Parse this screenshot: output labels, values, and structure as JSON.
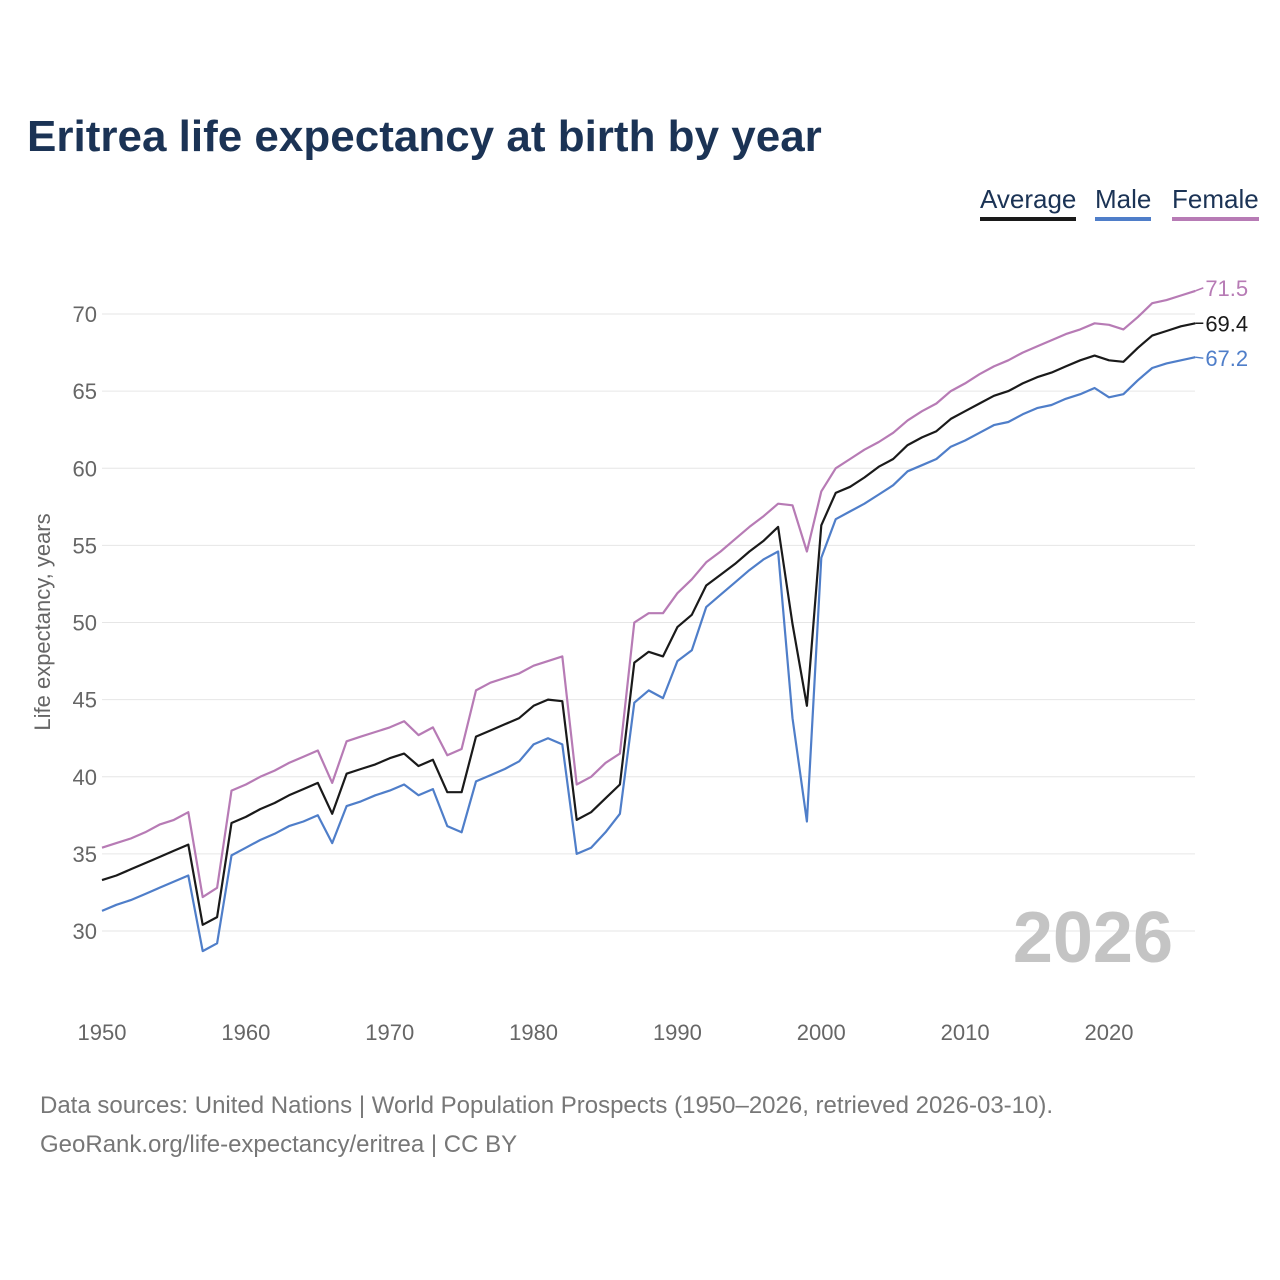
{
  "chart_data": {
    "type": "line",
    "title": "Eritrea life expectancy at birth by year",
    "xlabel": "",
    "ylabel": "Life expectancy, years",
    "x_start": 1950,
    "x_end": 2026,
    "xlim": [
      1950,
      2026
    ],
    "ylim": [
      26,
      72
    ],
    "x_ticks": [
      "1950",
      "1960",
      "1970",
      "1980",
      "1990",
      "2000",
      "2010",
      "2020"
    ],
    "y_ticks": [
      "30",
      "35",
      "40",
      "45",
      "50",
      "55",
      "60",
      "65",
      "70"
    ],
    "grid": true,
    "legend_placement": "top-right",
    "year_watermark": "2026",
    "series": [
      {
        "name": "Average",
        "color": "#1a1a1a",
        "end_label": "69.4",
        "values": [
          33.3,
          33.6,
          34.0,
          34.4,
          34.8,
          35.2,
          35.6,
          30.4,
          30.9,
          37.0,
          37.4,
          37.9,
          38.3,
          38.8,
          39.2,
          39.6,
          37.6,
          40.2,
          40.5,
          40.8,
          41.2,
          41.5,
          40.7,
          41.1,
          39.0,
          39.0,
          42.6,
          43.0,
          43.4,
          43.8,
          44.6,
          45.0,
          44.9,
          37.2,
          37.7,
          38.6,
          39.5,
          47.4,
          48.1,
          47.8,
          49.7,
          50.5,
          52.4,
          53.1,
          53.8,
          54.6,
          55.3,
          56.2,
          49.9,
          44.6,
          56.3,
          58.4,
          58.8,
          59.4,
          60.1,
          60.6,
          61.5,
          62.0,
          62.4,
          63.2,
          63.7,
          64.2,
          64.7,
          65.0,
          65.5,
          65.9,
          66.2,
          66.6,
          67.0,
          67.3,
          67.0,
          66.9,
          67.8,
          68.6,
          68.9,
          69.2,
          69.4
        ]
      },
      {
        "name": "Male",
        "color": "#4f7ec9",
        "end_label": "67.2",
        "values": [
          31.3,
          31.7,
          32.0,
          32.4,
          32.8,
          33.2,
          33.6,
          28.7,
          29.2,
          34.9,
          35.4,
          35.9,
          36.3,
          36.8,
          37.1,
          37.5,
          35.7,
          38.1,
          38.4,
          38.8,
          39.1,
          39.5,
          38.8,
          39.2,
          36.8,
          36.4,
          39.7,
          40.1,
          40.5,
          41.0,
          42.1,
          42.5,
          42.1,
          35.0,
          35.4,
          36.4,
          37.6,
          44.8,
          45.6,
          45.1,
          47.5,
          48.2,
          51.0,
          51.8,
          52.6,
          53.4,
          54.1,
          54.6,
          43.8,
          37.1,
          54.2,
          56.7,
          57.2,
          57.7,
          58.3,
          58.9,
          59.8,
          60.2,
          60.6,
          61.4,
          61.8,
          62.3,
          62.8,
          63.0,
          63.5,
          63.9,
          64.1,
          64.5,
          64.8,
          65.2,
          64.6,
          64.8,
          65.7,
          66.5,
          66.8,
          67.0,
          67.2
        ]
      },
      {
        "name": "Female",
        "color": "#b77bb5",
        "end_label": "71.5",
        "values": [
          35.4,
          35.7,
          36.0,
          36.4,
          36.9,
          37.2,
          37.7,
          32.2,
          32.8,
          39.1,
          39.5,
          40.0,
          40.4,
          40.9,
          41.3,
          41.7,
          39.6,
          42.3,
          42.6,
          42.9,
          43.2,
          43.6,
          42.7,
          43.2,
          41.4,
          41.8,
          45.6,
          46.1,
          46.4,
          46.7,
          47.2,
          47.5,
          47.8,
          39.5,
          40.0,
          40.9,
          41.5,
          50.0,
          50.6,
          50.6,
          51.9,
          52.8,
          53.9,
          54.6,
          55.4,
          56.2,
          56.9,
          57.7,
          57.6,
          54.6,
          58.5,
          60.0,
          60.6,
          61.2,
          61.7,
          62.3,
          63.1,
          63.7,
          64.2,
          65.0,
          65.5,
          66.1,
          66.6,
          67.0,
          67.5,
          67.9,
          68.3,
          68.7,
          69.0,
          69.4,
          69.3,
          69.0,
          69.8,
          70.7,
          70.9,
          71.2,
          71.5
        ]
      }
    ]
  },
  "footer": {
    "line1": "Data sources: United Nations | World Population Prospects (1950–2026, retrieved 2026-03-10).",
    "line2": "GeoRank.org/life-expectancy/eritrea | CC BY"
  }
}
